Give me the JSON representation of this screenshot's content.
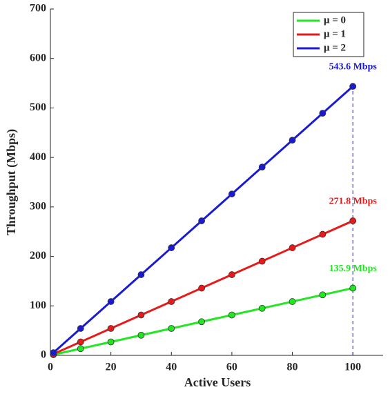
{
  "chart_data": {
    "type": "line",
    "x_label": "Active Users",
    "y_label": "Throughput (Mbps)",
    "x": [
      1,
      10,
      20,
      30,
      40,
      50,
      60,
      70,
      80,
      90,
      100
    ],
    "series": [
      {
        "name": "μ = 0",
        "color": "#22e622",
        "values": [
          1.359,
          13.59,
          27.18,
          40.77,
          54.36,
          67.95,
          81.54,
          95.13,
          108.72,
          122.31,
          135.9
        ],
        "value_labels": [
          null,
          null,
          null,
          null,
          null,
          null,
          null,
          null,
          null,
          null,
          "135.9 Mbps"
        ]
      },
      {
        "name": "μ = 1",
        "color": "#e61a1a",
        "values": [
          2.718,
          27.18,
          54.36,
          81.54,
          108.72,
          135.9,
          163.08,
          190.26,
          217.44,
          244.62,
          271.8
        ],
        "value_labels": [
          null,
          null,
          null,
          null,
          null,
          null,
          null,
          null,
          null,
          null,
          "271.8 Mbps"
        ]
      },
      {
        "name": "μ = 2",
        "color": "#1a1ad2",
        "values": [
          5.436,
          54.36,
          108.72,
          163.08,
          217.44,
          271.8,
          326.16,
          380.52,
          434.88,
          489.24,
          543.6
        ],
        "value_labels": [
          null,
          null,
          null,
          null,
          null,
          null,
          null,
          null,
          null,
          null,
          "543.6 Mbps"
        ]
      }
    ],
    "xlim": [
      0,
      110
    ],
    "xticks": [
      0,
      20,
      40,
      60,
      80,
      100
    ],
    "ylim": [
      0,
      700
    ],
    "yticks": [
      0,
      100,
      200,
      300,
      400,
      500,
      600,
      700
    ],
    "grid": false,
    "legend": "upper right"
  }
}
